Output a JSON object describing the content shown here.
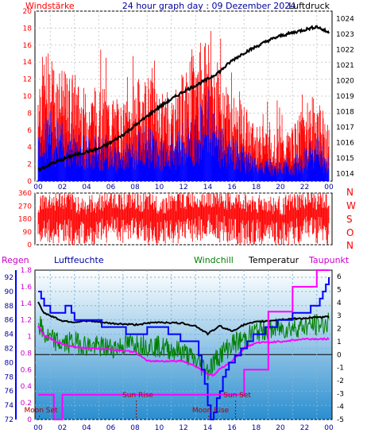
{
  "chart_data": [
    {
      "type": "line",
      "title": "24 hour graph day : 09 Dezember 2024",
      "left_label": "Windstärke",
      "right_label": "Luftdruck",
      "x_ticks": [
        "00",
        "02",
        "04",
        "06",
        "08",
        "10",
        "12",
        "14",
        "16",
        "18",
        "20",
        "22",
        "00"
      ],
      "y_left_ticks": [
        "0",
        "2",
        "4",
        "6",
        "8",
        "10",
        "12",
        "14",
        "16",
        "18",
        "20"
      ],
      "y_left_range": [
        0,
        20
      ],
      "y_right_ticks": [
        "1014",
        "1015",
        "1016",
        "1017",
        "1018",
        "1019",
        "1020",
        "1021",
        "1022",
        "1023",
        "1024"
      ],
      "y_right_range": [
        1013.5,
        1024.5
      ],
      "gridlines": true,
      "series": [
        {
          "name": "Luftdruck",
          "color": "#000000",
          "x": [
            0,
            1,
            2,
            3,
            4,
            5,
            6,
            7,
            8,
            9,
            10,
            11,
            12,
            13,
            14,
            15,
            16,
            17,
            18,
            19,
            20,
            21,
            22,
            23,
            24
          ],
          "values": [
            1014.2,
            1014.6,
            1014.9,
            1015.2,
            1015.4,
            1015.6,
            1016.0,
            1016.5,
            1017.1,
            1017.7,
            1018.3,
            1018.8,
            1019.3,
            1019.7,
            1020.1,
            1020.6,
            1021.3,
            1021.8,
            1022.2,
            1022.6,
            1022.9,
            1023.1,
            1023.3,
            1023.5,
            1023.1
          ]
        },
        {
          "color": "#ff0000",
          "x": [
            0,
            1,
            2,
            3,
            4,
            5,
            6,
            7,
            8,
            9,
            10,
            11,
            12,
            13,
            14,
            15,
            16,
            17,
            18,
            19,
            20,
            21,
            22,
            23,
            24
          ],
          "values": [
            11,
            12,
            10,
            10,
            8,
            9,
            8,
            7,
            9,
            10,
            8,
            8,
            10,
            12,
            15,
            10,
            8,
            7,
            5,
            5,
            4,
            5,
            7,
            8,
            5
          ]
        },
        {
          "color": "#0000ff",
          "x": [
            0,
            1,
            2,
            3,
            4,
            5,
            6,
            7,
            8,
            9,
            10,
            11,
            12,
            13,
            14,
            15,
            16,
            17,
            18,
            19,
            20,
            21,
            22,
            23,
            24
          ],
          "values": [
            6,
            6,
            5,
            5,
            4,
            4,
            4,
            3,
            4,
            5,
            4,
            4,
            5,
            6,
            8,
            5,
            4,
            3,
            2,
            2,
            2,
            2,
            3,
            4,
            2
          ]
        }
      ]
    },
    {
      "type": "line",
      "x_ticks": [
        "00",
        "02",
        "04",
        "06",
        "08",
        "10",
        "12",
        "14",
        "16",
        "18",
        "20",
        "22",
        "00"
      ],
      "y_ticks": [
        "0",
        "90",
        "180",
        "270",
        "360"
      ],
      "y_range": [
        0,
        360
      ],
      "compass_labels": [
        "N",
        "W",
        "S",
        "O",
        "N"
      ],
      "gridlines": true,
      "series": [
        {
          "color": "#ff0000",
          "x": [
            0,
            2,
            4,
            6,
            8,
            10,
            12,
            14,
            16,
            18,
            20,
            22,
            24
          ],
          "values": [
            220,
            240,
            200,
            250,
            230,
            210,
            240,
            260,
            230,
            220,
            200,
            240,
            230
          ]
        }
      ]
    },
    {
      "type": "line",
      "labels": {
        "regen": "Regen",
        "luftfeuchte": "Luftfeuchte",
        "windchill": "Windchill",
        "temperatur": "Temperatur",
        "taupunkt": "Taupunkt"
      },
      "x_ticks": [
        "00",
        "02",
        "04",
        "06",
        "08",
        "10",
        "12",
        "14",
        "16",
        "18",
        "20",
        "22",
        "00"
      ],
      "y_humidity_ticks": [
        "72",
        "74",
        "76",
        "78",
        "80",
        "82",
        "84",
        "86",
        "88",
        "90",
        "92"
      ],
      "y_humidity_range": [
        72,
        93
      ],
      "y_rain_ticks": [
        "0",
        "0.2",
        "0.4",
        "0.6",
        "0.8",
        "1",
        "1.2",
        "1.4",
        "1.6",
        "1.8"
      ],
      "y_rain_range": [
        0,
        1.8
      ],
      "y_temp_ticks": [
        "-5",
        "-4",
        "-3",
        "-2",
        "-1",
        "0",
        "1",
        "2",
        "3",
        "4",
        "5",
        "6"
      ],
      "y_temp_range": [
        -5,
        6.5
      ],
      "annotations": [
        {
          "text": "Moon Set",
          "x": 0.1
        },
        {
          "text": "Sun Rise",
          "x": 8.1
        },
        {
          "text": "Moon Rise",
          "x": 14.1
        },
        {
          "text": "Sun Set",
          "x": 16.3
        }
      ],
      "gridlines": true,
      "series": [
        {
          "name": "Temperatur",
          "color": "#000000",
          "x": [
            0,
            0.5,
            1,
            2,
            3,
            4,
            6,
            8,
            10,
            12,
            13,
            14,
            15,
            16,
            17,
            18,
            20,
            22,
            24
          ],
          "values": [
            4,
            3.2,
            3,
            2.6,
            2.5,
            2.6,
            2.4,
            2.3,
            2.5,
            2.4,
            2.2,
            1.6,
            2.2,
            1.8,
            2.3,
            2.5,
            2.7,
            2.8,
            2.9
          ]
        },
        {
          "name": "Windchill",
          "color": "#008000",
          "x": [
            0,
            0.5,
            1,
            2,
            3,
            4,
            6,
            8,
            10,
            12,
            13,
            14,
            15,
            16,
            17,
            18,
            20,
            22,
            24
          ],
          "values": [
            2.5,
            1.5,
            1.2,
            0.8,
            1.0,
            0.7,
            0.5,
            0.9,
            0.6,
            0.2,
            -0.5,
            -1.2,
            0.0,
            0.8,
            1.2,
            1.8,
            2.0,
            2.2,
            2.4
          ]
        },
        {
          "name": "Taupunkt",
          "color": "#ff00ff",
          "x": [
            0,
            0.5,
            1,
            2,
            3,
            4,
            6,
            8,
            9,
            12,
            13,
            14,
            14.5,
            15,
            16,
            17,
            18,
            20,
            22,
            24
          ],
          "values": [
            2.2,
            1.5,
            1.2,
            0.8,
            0.6,
            0.5,
            0.4,
            0.2,
            -0.5,
            -0.5,
            -0.9,
            -1.5,
            -1.6,
            -1.1,
            -0.5,
            0.5,
            0.9,
            1.0,
            1.2,
            1.2
          ]
        },
        {
          "name": "Luftfeuchte",
          "color": "#0000ff",
          "x": [
            0,
            0.5,
            1,
            2,
            2.5,
            3,
            4,
            6,
            8,
            10,
            12,
            13,
            13.5,
            14,
            14.3,
            14.8,
            15.5,
            16.5,
            17,
            18,
            19.5,
            20,
            22,
            23,
            24
          ],
          "values": [
            90,
            88,
            87,
            87,
            88,
            86,
            86,
            85,
            84,
            85,
            83,
            83,
            79,
            74,
            72,
            75,
            79,
            81,
            82,
            84,
            85,
            86,
            87,
            88,
            92
          ]
        },
        {
          "name": "Regen",
          "color": "#ff00ff",
          "x": [
            0,
            1,
            1.3,
            2,
            8,
            16,
            17,
            19,
            21,
            23,
            24
          ],
          "values": [
            0.3,
            0.3,
            0,
            0.3,
            0.3,
            0.3,
            0.6,
            1.3,
            1.6,
            1.8,
            1.8
          ]
        }
      ]
    }
  ]
}
